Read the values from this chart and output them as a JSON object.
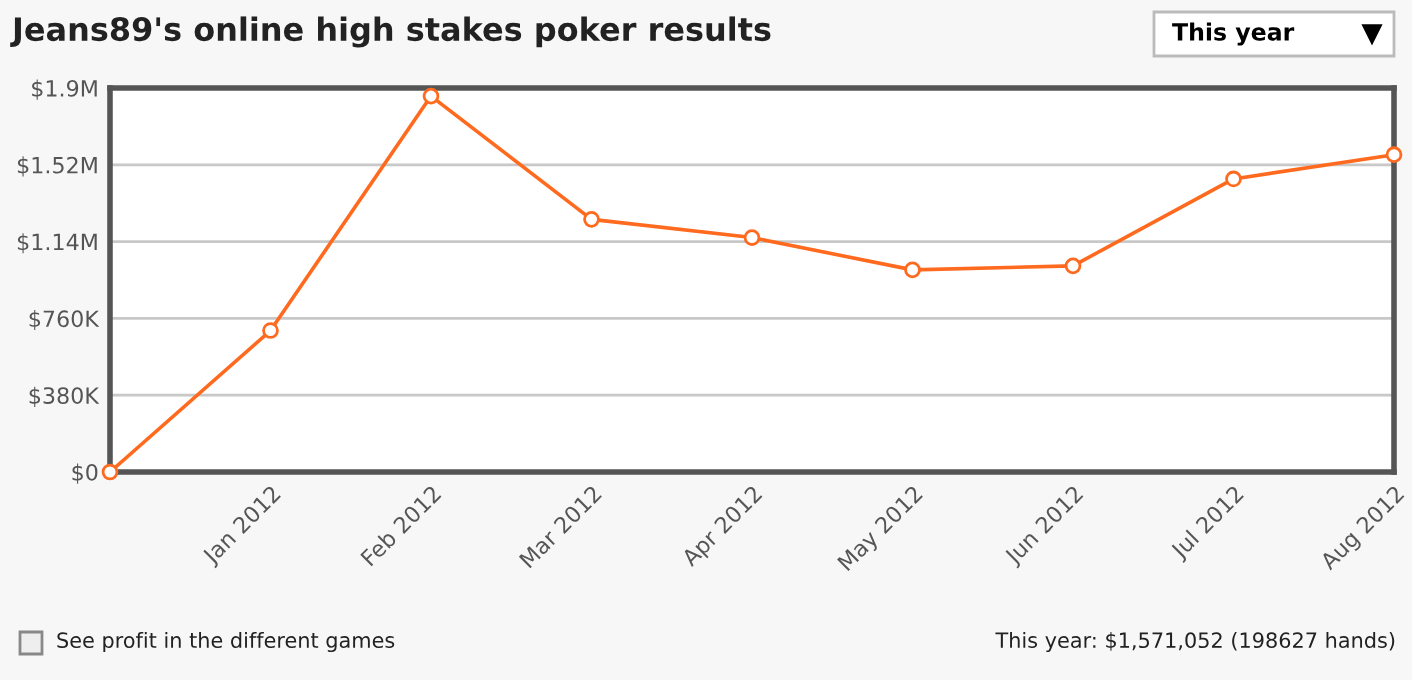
{
  "chart_data": {
    "type": "line",
    "title": "Jeans89's online high stakes poker results",
    "categories": [
      null,
      "Jan 2012",
      "Feb 2012",
      "Mar 2012",
      "Apr 2012",
      "May 2012",
      "Jun 2012",
      "Jul 2012",
      "Aug 2012"
    ],
    "series": [
      {
        "color": "#ff6a1f",
        "values": [
          0,
          700000,
          1860000,
          1250000,
          1160000,
          1000000,
          1020000,
          1450000,
          1570000
        ]
      }
    ],
    "ylim": [
      0,
      1900000
    ],
    "yticks": [
      {
        "value": 0,
        "label": "$0"
      },
      {
        "value": 380000,
        "label": "$380K"
      },
      {
        "value": 760000,
        "label": "$760K"
      },
      {
        "value": 1140000,
        "label": "$1.14M"
      },
      {
        "value": 1520000,
        "label": "$1.52M"
      },
      {
        "value": 1900000,
        "label": "$1.9M"
      }
    ],
    "grid": "y",
    "marker": "circle",
    "line_style": "solid",
    "annotations": [
      "This year",
      "See profit in the different games",
      "This year: $1,571,052 (198627 hands)"
    ]
  }
}
